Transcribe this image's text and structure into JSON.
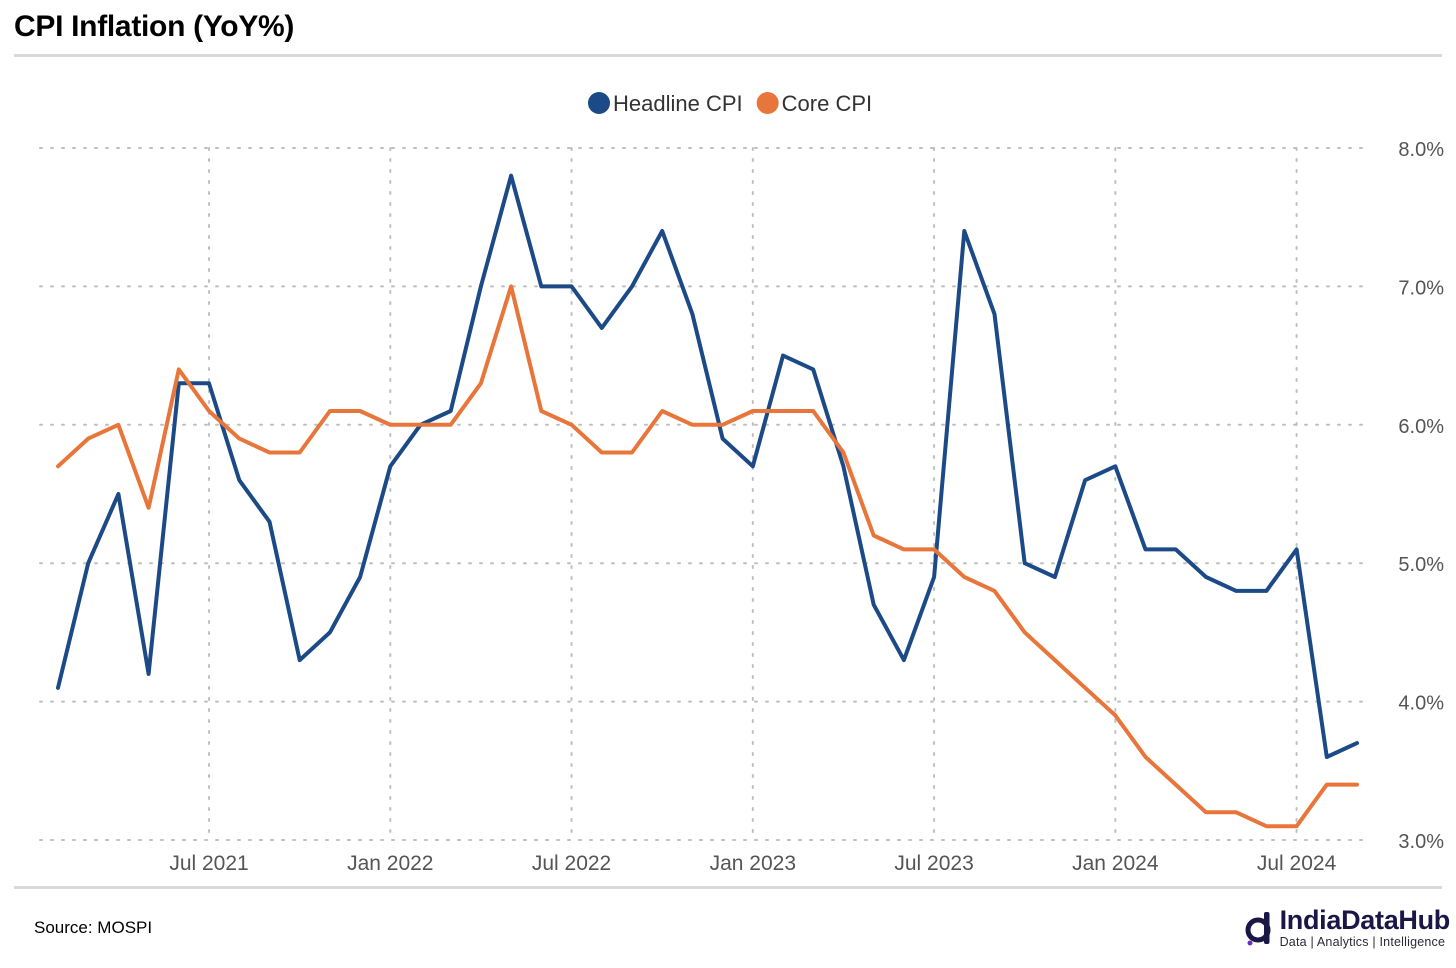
{
  "header": {
    "title": "CPI Inflation (YoY%)"
  },
  "footer": {
    "source": "Source: MOSPI",
    "brand_name": "IndiaDataHub",
    "brand_tagline": "Data | Analytics | Intelligence"
  },
  "chart_data": {
    "type": "line",
    "legend_position": "top-center",
    "grid": true,
    "ylim": [
      3.0,
      8.0
    ],
    "y_ticks": [
      3.0,
      4.0,
      5.0,
      6.0,
      7.0,
      8.0
    ],
    "y_tick_labels": [
      "3.0%",
      "4.0%",
      "5.0%",
      "6.0%",
      "7.0%",
      "8.0%"
    ],
    "x_ticks": [
      "2021-07",
      "2022-01",
      "2022-07",
      "2023-01",
      "2023-07",
      "2024-01",
      "2024-07"
    ],
    "x_tick_labels": [
      "Jul 2021",
      "Jan 2022",
      "Jul 2022",
      "Jan 2023",
      "Jul 2023",
      "Jan 2024",
      "Jul 2024"
    ],
    "x": [
      "2021-02",
      "2021-03",
      "2021-04",
      "2021-05",
      "2021-06",
      "2021-07",
      "2021-08",
      "2021-09",
      "2021-10",
      "2021-11",
      "2021-12",
      "2022-01",
      "2022-02",
      "2022-03",
      "2022-04",
      "2022-05",
      "2022-06",
      "2022-07",
      "2022-08",
      "2022-09",
      "2022-10",
      "2022-11",
      "2022-12",
      "2023-01",
      "2023-02",
      "2023-03",
      "2023-04",
      "2023-05",
      "2023-06",
      "2023-07",
      "2023-08",
      "2023-09",
      "2023-10",
      "2023-11",
      "2023-12",
      "2024-01",
      "2024-02",
      "2024-03",
      "2024-04",
      "2024-05",
      "2024-06",
      "2024-07",
      "2024-08",
      "2024-09"
    ],
    "series": [
      {
        "name": "Headline CPI",
        "color": "#1b4a86",
        "values": [
          4.1,
          5.0,
          5.5,
          4.2,
          6.3,
          6.3,
          5.6,
          5.3,
          4.3,
          4.5,
          4.9,
          5.7,
          6.0,
          6.1,
          7.0,
          7.8,
          7.0,
          7.0,
          6.7,
          7.0,
          7.4,
          6.8,
          5.9,
          5.7,
          6.5,
          6.4,
          5.7,
          4.7,
          4.3,
          4.9,
          7.4,
          6.8,
          5.0,
          4.9,
          5.6,
          5.7,
          5.1,
          5.1,
          4.9,
          4.8,
          4.8,
          5.1,
          3.6,
          3.7
        ]
      },
      {
        "name": "Core CPI",
        "color": "#e8753a",
        "values": [
          5.7,
          5.9,
          6.0,
          5.4,
          6.4,
          6.1,
          5.9,
          5.8,
          5.8,
          6.1,
          6.1,
          6.0,
          6.0,
          6.0,
          6.3,
          7.0,
          6.1,
          6.0,
          5.8,
          5.8,
          6.1,
          6.0,
          6.0,
          6.1,
          6.1,
          6.1,
          5.8,
          5.2,
          5.1,
          5.1,
          4.9,
          4.8,
          4.5,
          4.3,
          4.1,
          3.9,
          3.6,
          3.4,
          3.2,
          3.2,
          3.1,
          3.1,
          3.4,
          3.4
        ]
      }
    ]
  }
}
